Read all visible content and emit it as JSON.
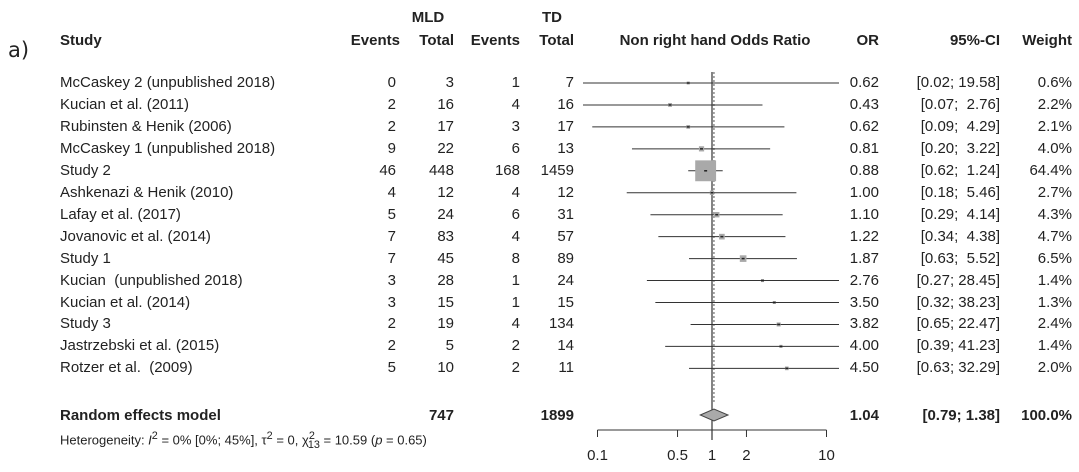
{
  "panel_label": "a)",
  "headers": {
    "study": "Study",
    "group1": "MLD",
    "group2": "TD",
    "events1": "Events",
    "total1": "Total",
    "events2": "Events",
    "total2": "Total",
    "plot": "Non right hand Odds Ratio",
    "or": "OR",
    "ci": "95%-CI",
    "weight": "Weight"
  },
  "summary": {
    "label": "Random effects model",
    "total1": "747",
    "total2": "1899",
    "or": "1.04",
    "ci": "[0.79; 1.38]",
    "weight": "100.0%"
  },
  "heterogeneity": {
    "prefix": "Heterogeneity: ",
    "i2_symbol": "I",
    "i2_sup": "2",
    "i2_rest": " = 0% [0%; 45%], ",
    "tau_symbol": "τ",
    "tau_sup": "2",
    "tau_rest": " = 0, ",
    "chi_symbol": "χ",
    "chi_sup": "2",
    "chi_sub": "13",
    "chi_rest": " = 10.59 (",
    "p": "p",
    "p_rest": " = 0.65)"
  },
  "chart_data": {
    "type": "forest",
    "x_scale": "log",
    "xlim": [
      0.1,
      10
    ],
    "ticks": [
      0.1,
      0.5,
      1,
      2,
      10
    ],
    "tick_labels": [
      "0.1",
      "0.5",
      "1",
      "2",
      "10"
    ],
    "reference_line": 1,
    "pooled_line": 1.04,
    "studies": [
      {
        "study": "McCaskey 2 (unpublished 2018)",
        "events1": "0",
        "total1": "3",
        "events2": "1",
        "total2": "7",
        "or": 0.62,
        "lo": 0.02,
        "hi": 19.58,
        "or_text": "0.62",
        "ci_text": "[0.02; 19.58]",
        "weight": "0.6%",
        "w": 0.6
      },
      {
        "study": "Kucian et al. (2011)",
        "events1": "2",
        "total1": "16",
        "events2": "4",
        "total2": "16",
        "or": 0.43,
        "lo": 0.07,
        "hi": 2.76,
        "or_text": "0.43",
        "ci_text": "[0.07;  2.76]",
        "weight": "2.2%",
        "w": 2.2
      },
      {
        "study": "Rubinsten & Henik (2006)",
        "events1": "2",
        "total1": "17",
        "events2": "3",
        "total2": "17",
        "or": 0.62,
        "lo": 0.09,
        "hi": 4.29,
        "or_text": "0.62",
        "ci_text": "[0.09;  4.29]",
        "weight": "2.1%",
        "w": 2.1
      },
      {
        "study": "McCaskey 1 (unpublished 2018)",
        "events1": "9",
        "total1": "22",
        "events2": "6",
        "total2": "13",
        "or": 0.81,
        "lo": 0.2,
        "hi": 3.22,
        "or_text": "0.81",
        "ci_text": "[0.20;  3.22]",
        "weight": "4.0%",
        "w": 4.0
      },
      {
        "study": "Study 2",
        "events1": "46",
        "total1": "448",
        "events2": "168",
        "total2": "1459",
        "or": 0.88,
        "lo": 0.62,
        "hi": 1.24,
        "or_text": "0.88",
        "ci_text": "[0.62;  1.24]",
        "weight": "64.4%",
        "w": 64.4
      },
      {
        "study": "Ashkenazi & Henik (2010)",
        "events1": "4",
        "total1": "12",
        "events2": "4",
        "total2": "12",
        "or": 1.0,
        "lo": 0.18,
        "hi": 5.46,
        "or_text": "1.00",
        "ci_text": "[0.18;  5.46]",
        "weight": "2.7%",
        "w": 2.7
      },
      {
        "study": "Lafay et al. (2017)",
        "events1": "5",
        "total1": "24",
        "events2": "6",
        "total2": "31",
        "or": 1.1,
        "lo": 0.29,
        "hi": 4.14,
        "or_text": "1.10",
        "ci_text": "[0.29;  4.14]",
        "weight": "4.3%",
        "w": 4.3
      },
      {
        "study": "Jovanovic et al. (2014)",
        "events1": "7",
        "total1": "83",
        "events2": "4",
        "total2": "57",
        "or": 1.22,
        "lo": 0.34,
        "hi": 4.38,
        "or_text": "1.22",
        "ci_text": "[0.34;  4.38]",
        "weight": "4.7%",
        "w": 4.7
      },
      {
        "study": "Study 1",
        "events1": "7",
        "total1": "45",
        "events2": "8",
        "total2": "89",
        "or": 1.87,
        "lo": 0.63,
        "hi": 5.52,
        "or_text": "1.87",
        "ci_text": "[0.63;  5.52]",
        "weight": "6.5%",
        "w": 6.5
      },
      {
        "study": "Kucian  (unpublished 2018)",
        "events1": "3",
        "total1": "28",
        "events2": "1",
        "total2": "24",
        "or": 2.76,
        "lo": 0.27,
        "hi": 28.45,
        "or_text": "2.76",
        "ci_text": "[0.27; 28.45]",
        "weight": "1.4%",
        "w": 1.4
      },
      {
        "study": "Kucian et al. (2014)",
        "events1": "3",
        "total1": "15",
        "events2": "1",
        "total2": "15",
        "or": 3.5,
        "lo": 0.32,
        "hi": 38.23,
        "or_text": "3.50",
        "ci_text": "[0.32; 38.23]",
        "weight": "1.3%",
        "w": 1.3
      },
      {
        "study": "Study 3",
        "events1": "2",
        "total1": "19",
        "events2": "4",
        "total2": "134",
        "or": 3.82,
        "lo": 0.65,
        "hi": 22.47,
        "or_text": "3.82",
        "ci_text": "[0.65; 22.47]",
        "weight": "2.4%",
        "w": 2.4
      },
      {
        "study": "Jastrzebski et al. (2015)",
        "events1": "2",
        "total1": "5",
        "events2": "2",
        "total2": "14",
        "or": 4.0,
        "lo": 0.39,
        "hi": 41.23,
        "or_text": "4.00",
        "ci_text": "[0.39; 41.23]",
        "weight": "1.4%",
        "w": 1.4
      },
      {
        "study": "Rotzer et al.  (2009)",
        "events1": "5",
        "total1": "10",
        "events2": "2",
        "total2": "11",
        "or": 4.5,
        "lo": 0.63,
        "hi": 32.29,
        "or_text": "4.50",
        "ci_text": "[0.63; 32.29]",
        "weight": "2.0%",
        "w": 2.0
      }
    ],
    "pooled": {
      "or": 1.04,
      "lo": 0.79,
      "hi": 1.38
    }
  }
}
